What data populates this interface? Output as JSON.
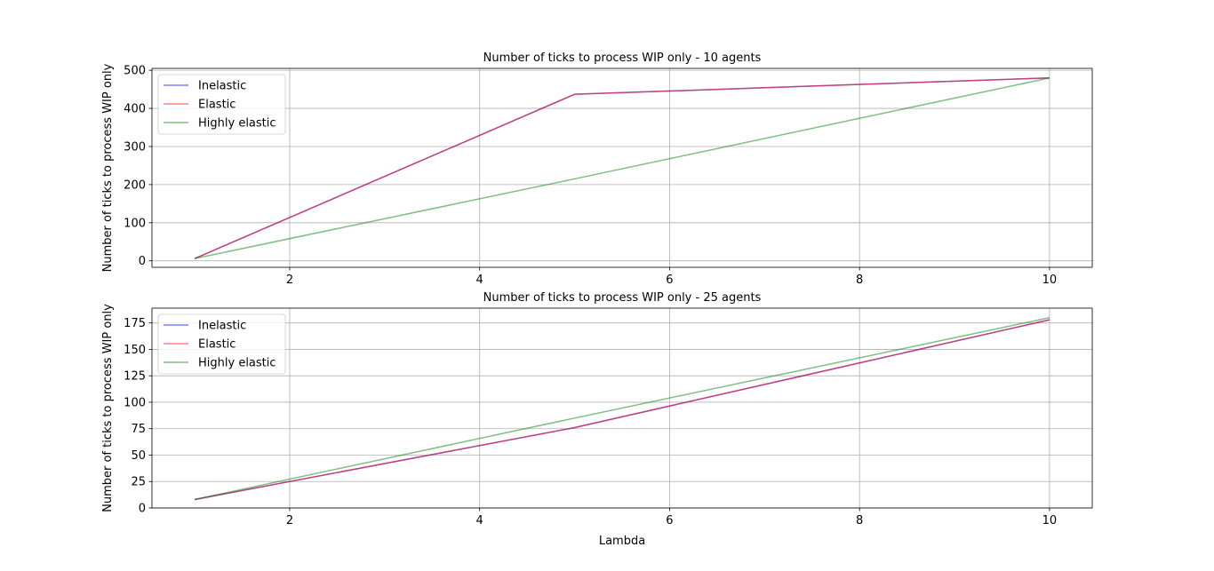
{
  "chart_data": [
    {
      "type": "line",
      "title": "Number of ticks to process WIP only - 10 agents",
      "xlabel": "",
      "ylabel": "Number of ticks to process WIP only",
      "xlim": [
        0.55,
        10.45
      ],
      "ylim": [
        -17,
        505
      ],
      "xticks": [
        2,
        4,
        6,
        8,
        10
      ],
      "yticks": [
        0,
        100,
        200,
        300,
        400,
        500
      ],
      "grid": true,
      "legend_position": "upper-left",
      "x": [
        1,
        5,
        10
      ],
      "series": [
        {
          "name": "Inelastic",
          "color": "#0000ff",
          "alpha": 0.5,
          "values": [
            6,
            437,
            480
          ]
        },
        {
          "name": "Elastic",
          "color": "#ff0000",
          "alpha": 0.5,
          "values": [
            6,
            437,
            480
          ]
        },
        {
          "name": "Highly elastic",
          "color": "#008000",
          "alpha": 0.5,
          "values": [
            6,
            215,
            480
          ]
        }
      ]
    },
    {
      "type": "line",
      "title": "Number of ticks to process WIP only - 25 agents",
      "xlabel": "Lambda",
      "ylabel": "Number of ticks to process WIP only",
      "xlim": [
        0.55,
        10.45
      ],
      "ylim": [
        0,
        189
      ],
      "xticks": [
        2,
        4,
        6,
        8,
        10
      ],
      "yticks": [
        0,
        25,
        50,
        75,
        100,
        125,
        150,
        175
      ],
      "grid": true,
      "legend_position": "upper-left",
      "x": [
        1,
        5,
        10
      ],
      "series": [
        {
          "name": "Inelastic",
          "color": "#0000ff",
          "alpha": 0.5,
          "values": [
            8,
            76,
            178
          ]
        },
        {
          "name": "Elastic",
          "color": "#ff0000",
          "alpha": 0.5,
          "values": [
            8,
            76,
            178
          ]
        },
        {
          "name": "Highly elastic",
          "color": "#008000",
          "alpha": 0.5,
          "values": [
            8,
            85,
            180
          ]
        }
      ]
    }
  ]
}
